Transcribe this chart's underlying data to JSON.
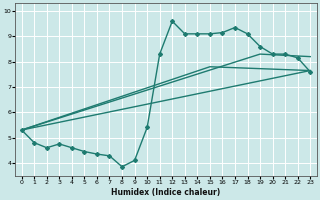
{
  "xlabel": "Humidex (Indice chaleur)",
  "xlim": [
    -0.5,
    23.5
  ],
  "ylim": [
    3.5,
    10.3
  ],
  "xticks": [
    0,
    1,
    2,
    3,
    4,
    5,
    6,
    7,
    8,
    9,
    10,
    11,
    12,
    13,
    14,
    15,
    16,
    17,
    18,
    19,
    20,
    21,
    22,
    23
  ],
  "yticks": [
    4,
    5,
    6,
    7,
    8,
    9,
    10
  ],
  "bg_color": "#cce8e8",
  "line_color": "#1e7b70",
  "grid_color": "#ffffff",
  "line_width": 1.0,
  "marker": "D",
  "marker_size": 2.0,
  "lines": [
    {
      "x": [
        0,
        1,
        2,
        3,
        4,
        5,
        6,
        7,
        8,
        9,
        10,
        11,
        12,
        13,
        14,
        15,
        16,
        17,
        18,
        19,
        20,
        21,
        22,
        23
      ],
      "y": [
        5.3,
        4.8,
        4.6,
        4.75,
        4.6,
        4.45,
        4.35,
        4.28,
        3.85,
        4.1,
        5.4,
        8.3,
        9.6,
        9.1,
        9.1,
        9.1,
        9.15,
        9.35,
        9.1,
        8.6,
        8.3,
        8.3,
        8.15,
        7.6
      ],
      "with_markers": true
    },
    {
      "x": [
        0,
        23
      ],
      "y": [
        5.3,
        7.65
      ],
      "with_markers": false
    },
    {
      "x": [
        0,
        19,
        23
      ],
      "y": [
        5.3,
        8.3,
        8.2
      ],
      "with_markers": false
    },
    {
      "x": [
        0,
        15,
        23
      ],
      "y": [
        5.3,
        7.8,
        7.65
      ],
      "with_markers": false
    }
  ]
}
